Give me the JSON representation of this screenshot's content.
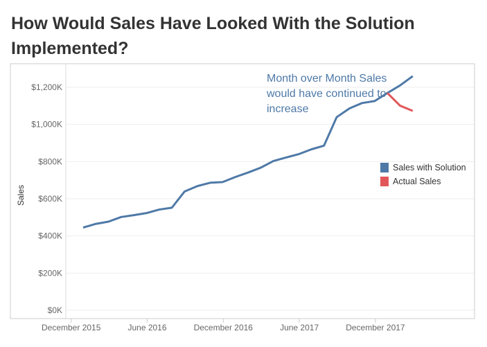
{
  "title": "How Would Sales Have Looked With the Solution Implemented?",
  "chart_data": {
    "type": "line",
    "title": "How Would Sales Have Looked With the Solution Implemented?",
    "xlabel": "",
    "ylabel": "Sales",
    "ylim": [
      0,
      1250
    ],
    "yticks": [
      0,
      200,
      400,
      600,
      800,
      1000,
      1200
    ],
    "ytick_labels": [
      "$0K",
      "$200K",
      "$400K",
      "$600K",
      "$800K",
      "$1,000K",
      "$1,200K"
    ],
    "xtick_labels": [
      {
        "label": "December 2015",
        "index": -1
      },
      {
        "label": "June 2016",
        "index": 5
      },
      {
        "label": "December 2016",
        "index": 11
      },
      {
        "label": "June 2017",
        "index": 17
      },
      {
        "label": "December 2017",
        "index": 23
      }
    ],
    "x": [
      "Jan 2016",
      "Feb 2016",
      "Mar 2016",
      "Apr 2016",
      "May 2016",
      "Jun 2016",
      "Jul 2016",
      "Aug 2016",
      "Sep 2016",
      "Oct 2016",
      "Nov 2016",
      "Dec 2016",
      "Jan 2017",
      "Feb 2017",
      "Mar 2017",
      "Apr 2017",
      "May 2017",
      "Jun 2017",
      "Jul 2017",
      "Aug 2017",
      "Sep 2017",
      "Oct 2017",
      "Nov 2017",
      "Dec 2017",
      "Jan 2018",
      "Feb 2018",
      "Mar 2018"
    ],
    "series": [
      {
        "name": "Sales with Solution",
        "color": "#4e79a7",
        "values": [
          445,
          465,
          477,
          502,
          512,
          523,
          542,
          552,
          639,
          668,
          686,
          690,
          717,
          741,
          767,
          803,
          822,
          840,
          866,
          886,
          1039,
          1086,
          1115,
          1126,
          1169,
          1210,
          1260
        ]
      },
      {
        "name": "Actual Sales",
        "color": "#e15759",
        "values": [
          null,
          null,
          null,
          null,
          null,
          null,
          null,
          null,
          null,
          null,
          null,
          null,
          null,
          null,
          null,
          null,
          null,
          null,
          null,
          null,
          null,
          null,
          null,
          null,
          1169,
          1101,
          1073
        ]
      }
    ],
    "annotation": "Month over Month Sales would have continued to increase",
    "annotation_lines": [
      "Month over Month Sales",
      "would have continued to",
      "increase"
    ],
    "legend_position": "right",
    "grid": true
  }
}
